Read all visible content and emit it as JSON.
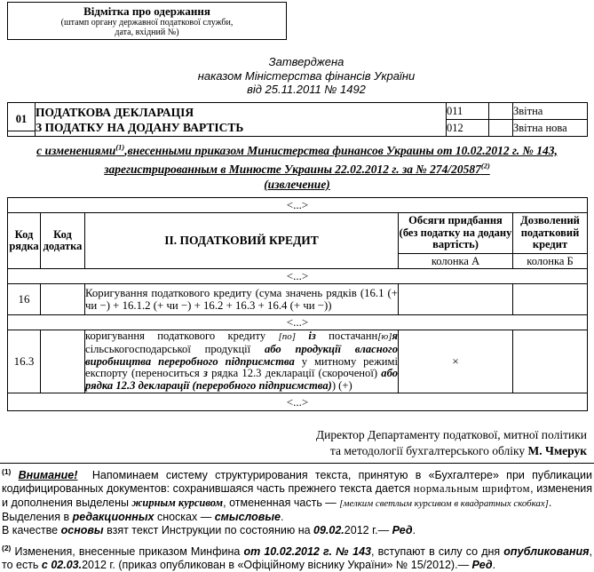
{
  "receipt_box": {
    "title": "Відмітка про одержання",
    "subtitle_line1": "(штамп органу державної податкової служби,",
    "subtitle_line2": "дата, вхідний №)"
  },
  "approved": {
    "line1": "Затверджена",
    "line2": "наказом Міністерства фінансів України",
    "line3": "від 25.11.2011 № 1492"
  },
  "declaration_table": {
    "row_code": "01",
    "title_line1": "ПОДАТКОВА ДЕКЛАРАЦІЯ",
    "title_line2": "З ПОДАТКУ НА ДОДАНУ ВАРТІСТЬ",
    "type_rows": [
      {
        "code": "011",
        "value": "",
        "label": "Звітна"
      },
      {
        "code": "012",
        "value": "",
        "label": "Звітна нова"
      }
    ]
  },
  "amendments": {
    "line1": [
      {
        "t": "с изменениями",
        "s": "n"
      },
      {
        "t": "(1)",
        "s": "sup"
      },
      {
        "t": ",внесенными приказом Министерства финансов Украины от 10.02.2012 г. № 143,",
        "s": "n"
      }
    ],
    "line2": [
      {
        "t": "зарегистрированным в Минюсте Украины 22.02.2012 г. за № 274/20587",
        "s": "n"
      },
      {
        "t": "(2)",
        "s": "sup"
      }
    ],
    "line3": [
      {
        "t": "(извлечение)",
        "s": "n"
      }
    ]
  },
  "credit_table": {
    "ellipsis": "<...>",
    "headers": {
      "col_row_code": "Код рядка",
      "col_appendix_code": "Код додатка",
      "section_title": "II. ПОДАТКОВИЙ КРЕДИТ",
      "col_a_header": "Обсяги придбання (без податку на додану вартість)",
      "col_b_header": "Дозволений податковий кредит",
      "col_a_label": "колонка А",
      "col_b_label": "колонка Б"
    },
    "rows": [
      {
        "code": "16",
        "appendix": "",
        "text": [
          {
            "t": "Коригування податкового кредиту (сума значень рядків (16.1 (+ чи −) + 16.1.2 (+ чи −) + 16.2 + 16.3 + 16.4 (+ чи −))",
            "s": "n"
          }
        ],
        "col_a": "",
        "col_b": ""
      },
      {
        "code": "16.3",
        "appendix": "",
        "text": [
          {
            "t": "коригування податкового кредиту ",
            "s": "n"
          },
          {
            "t": "[по]",
            "s": "cancel"
          },
          {
            "t": " ",
            "s": "n"
          },
          {
            "t": "із",
            "s": "bi"
          },
          {
            "t": " постачанн",
            "s": "n"
          },
          {
            "t": "[ю]",
            "s": "cancel"
          },
          {
            "t": "я",
            "s": "bi"
          },
          {
            "t": " сільськогосподарської продукції ",
            "s": "n"
          },
          {
            "t": "або продукції власного виробництва переробного підприємства",
            "s": "bi"
          },
          {
            "t": " у митному режимі експорту (переноситься ",
            "s": "n"
          },
          {
            "t": "з",
            "s": "bi"
          },
          {
            "t": " рядка 12.3 декларації (скороченої) ",
            "s": "n"
          },
          {
            "t": "або рядка 12.3 декларації (переробного підприємства)",
            "s": "bi"
          },
          {
            "t": ") (+)",
            "s": "n"
          }
        ],
        "col_a": "×",
        "col_b": ""
      }
    ]
  },
  "signature": {
    "line1": "Директор Департаменту податкової, митної політики",
    "line2_prefix": "та методології бухгалтерського обліку ",
    "name": "М. Чмерук"
  },
  "footnotes": {
    "fn1": [
      {
        "t": "(1)",
        "s": "sup"
      },
      {
        "t": " ",
        "s": "n"
      },
      {
        "t": "Внимание!",
        "s": "biu"
      },
      {
        "t": "  Напоминаем систему структурирования текста, принятую в «Бухгалтере» при публикации кодифицированных документов: сохранившаяся часть прежнего текста дается ",
        "s": "n"
      },
      {
        "t": "нормальным шрифтом",
        "s": "serif"
      },
      {
        "t": ", изменения и дополнения выделены ",
        "s": "n"
      },
      {
        "t": "жирным курсивом",
        "s": "serifbi"
      },
      {
        "t": ", отмененная часть — ",
        "s": "n"
      },
      {
        "t": "[мелким светлым курсивом в квадратных скобках]",
        "s": "cancel"
      },
      {
        "t": ".",
        "s": "n"
      }
    ],
    "fn1_editorial": [
      {
        "t": "Выделения в ",
        "s": "n"
      },
      {
        "t": "редакционных",
        "s": "bi"
      },
      {
        "t": " сносках — ",
        "s": "n"
      },
      {
        "t": "смысловые",
        "s": "bi"
      },
      {
        "t": ".",
        "s": "n"
      }
    ],
    "fn1_basis": [
      {
        "t": "В качестве ",
        "s": "n"
      },
      {
        "t": "основы",
        "s": "bi"
      },
      {
        "t": " взят текст Инструкции по состоянию на ",
        "s": "n"
      },
      {
        "t": "09.02.",
        "s": "bi"
      },
      {
        "t": "2012 г.— ",
        "s": "n"
      },
      {
        "t": "Ред",
        "s": "bi"
      },
      {
        "t": ".",
        "s": "n"
      }
    ],
    "fn2": [
      {
        "t": "(2)",
        "s": "sup"
      },
      {
        "t": " Изменения, внесенные приказом Минфина ",
        "s": "n"
      },
      {
        "t": "от 10.02.2012 г. № 143",
        "s": "bi"
      },
      {
        "t": ", вступают в силу со дня ",
        "s": "n"
      },
      {
        "t": "опубликования",
        "s": "bi"
      },
      {
        "t": ", то есть ",
        "s": "n"
      },
      {
        "t": "с 02.03.",
        "s": "bi"
      },
      {
        "t": "2012 г. (приказ опубликован в «Офіційному віснику України» № 15/2012).— ",
        "s": "n"
      },
      {
        "t": "Ред",
        "s": "bi"
      },
      {
        "t": ".",
        "s": "n"
      }
    ]
  }
}
